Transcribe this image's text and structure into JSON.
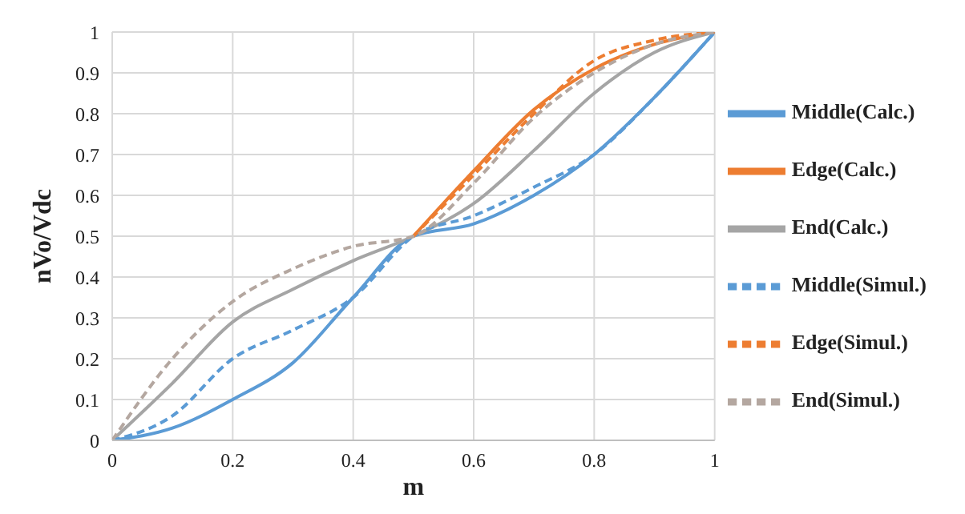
{
  "chart_data": {
    "type": "line",
    "xlabel": "m",
    "ylabel": "nVo/Vdc",
    "x": [
      0,
      0.1,
      0.2,
      0.3,
      0.4,
      0.5,
      0.6,
      0.7,
      0.8,
      0.9,
      1
    ],
    "xlim": [
      0,
      1
    ],
    "xticks": [
      0,
      0.2,
      0.4,
      0.6,
      0.8,
      1
    ],
    "ylim": [
      0,
      1
    ],
    "yticks": [
      0,
      0.1,
      0.2,
      0.3,
      0.4,
      0.5,
      0.6,
      0.7,
      0.8,
      0.9,
      1
    ],
    "grid": true,
    "legend": "right",
    "marker": "none",
    "series": [
      {
        "name": "Middle(Calc.)",
        "color": "#5b9bd5",
        "line_style": "solid",
        "values": [
          0,
          0.03,
          0.1,
          0.19,
          0.35,
          0.5,
          0.53,
          0.6,
          0.7,
          0.84,
          1
        ]
      },
      {
        "name": "Edge(Calc.)",
        "color": "#ed7d31",
        "line_style": "solid",
        "values": [
          null,
          null,
          null,
          null,
          null,
          0.5,
          0.66,
          0.81,
          0.91,
          0.97,
          1
        ]
      },
      {
        "name": "End(Calc.)",
        "color": "#a5a5a5",
        "line_style": "solid",
        "values": [
          0,
          0.14,
          0.29,
          0.37,
          0.44,
          0.5,
          0.58,
          0.71,
          0.85,
          0.95,
          1
        ]
      },
      {
        "name": "Middle(Simul.)",
        "color": "#5b9bd5",
        "line_style": "dashed",
        "values": [
          0,
          0.06,
          0.2,
          0.27,
          0.35,
          0.5,
          0.55,
          0.62,
          0.7,
          0.84,
          1
        ]
      },
      {
        "name": "Edge(Simul.)",
        "color": "#ed7d31",
        "line_style": "dashed",
        "values": [
          null,
          null,
          null,
          null,
          null,
          0.5,
          0.65,
          0.8,
          0.93,
          0.98,
          1
        ]
      },
      {
        "name": "End(Simul.)",
        "color": "#b4a7a0",
        "line_style": "dashed",
        "values": [
          0,
          0.2,
          0.34,
          0.42,
          0.475,
          0.5,
          0.63,
          0.79,
          0.9,
          0.97,
          1
        ]
      }
    ]
  }
}
